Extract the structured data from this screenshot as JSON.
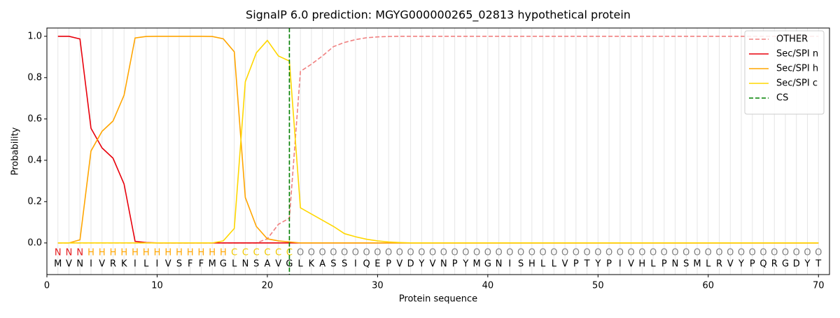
{
  "chart_data": {
    "type": "line",
    "title": "SignalP 6.0 prediction: MGYG000000265_02813 hypothetical protein",
    "x_label": "Protein sequence",
    "y_label": "Probability",
    "xlim": [
      0,
      71
    ],
    "ylim": [
      -0.153,
      1.04
    ],
    "xticks": [
      0,
      10,
      20,
      30,
      40,
      50,
      60,
      70
    ],
    "yticks": [
      {
        "value": 0,
        "label": "0.0"
      },
      0.2,
      0.4,
      0.6,
      0.8,
      {
        "value": 1,
        "label": "1.0"
      }
    ],
    "x": [
      1,
      2,
      3,
      4,
      5,
      6,
      7,
      8,
      9,
      10,
      11,
      12,
      13,
      14,
      15,
      16,
      17,
      18,
      19,
      20,
      21,
      22,
      23,
      24,
      25,
      26,
      27,
      28,
      29,
      30,
      31,
      32,
      33,
      34,
      35,
      36,
      37,
      38,
      39,
      40,
      41,
      42,
      43,
      44,
      45,
      46,
      47,
      48,
      49,
      50,
      51,
      52,
      53,
      54,
      55,
      56,
      57,
      58,
      59,
      60,
      61,
      62,
      63,
      64,
      65,
      66,
      67,
      68,
      69,
      70
    ],
    "residues": [
      "M",
      "V",
      "N",
      "I",
      "V",
      "R",
      "K",
      "I",
      "L",
      "I",
      "V",
      "S",
      "F",
      "F",
      "M",
      "G",
      "L",
      "N",
      "S",
      "A",
      "V",
      "G",
      "L",
      "K",
      "A",
      "S",
      "S",
      "I",
      "Q",
      "E",
      "P",
      "V",
      "D",
      "Y",
      "V",
      "N",
      "P",
      "Y",
      "M",
      "G",
      "N",
      "I",
      "S",
      "H",
      "L",
      "L",
      "V",
      "P",
      "T",
      "Y",
      "P",
      "I",
      "V",
      "H",
      "L",
      "P",
      "N",
      "S",
      "M",
      "L",
      "R",
      "V",
      "Y",
      "P",
      "Q",
      "R",
      "G",
      "D",
      "Y",
      "T"
    ],
    "labels": [
      "N",
      "N",
      "N",
      "H",
      "H",
      "H",
      "H",
      "H",
      "H",
      "H",
      "H",
      "H",
      "H",
      "H",
      "H",
      "H",
      "C",
      "C",
      "C",
      "C",
      "C",
      "C",
      "O",
      "O",
      "O",
      "O",
      "O",
      "O",
      "O",
      "O",
      "O",
      "O",
      "O",
      "O",
      "O",
      "O",
      "O",
      "O",
      "O",
      "O",
      "O",
      "O",
      "O",
      "O",
      "O",
      "O",
      "O",
      "O",
      "O",
      "O",
      "O",
      "O",
      "O",
      "O",
      "O",
      "O",
      "O",
      "O",
      "O",
      "O",
      "O",
      "O",
      "O",
      "O",
      "O",
      "O",
      "O",
      "O",
      "O",
      "O"
    ],
    "label_colors": {
      "N": "#e41a1c",
      "H": "orange",
      "C": "#f0c800",
      "O": "gray"
    },
    "series": [
      {
        "name": "OTHER",
        "color": "#f08080",
        "dashed": true,
        "values": [
          0,
          0,
          0,
          0,
          0,
          0,
          0,
          0,
          0,
          0,
          0,
          0,
          0,
          0,
          0,
          0,
          0,
          0,
          0,
          0.02,
          0.09,
          0.12,
          0.83,
          0.865,
          0.905,
          0.95,
          0.97,
          0.984,
          0.993,
          0.997,
          0.999,
          1,
          1,
          1,
          1,
          1,
          1,
          1,
          1,
          1,
          1,
          1,
          1,
          1,
          1,
          1,
          1,
          1,
          1,
          1,
          1,
          1,
          1,
          1,
          1,
          1,
          1,
          1,
          1,
          1,
          1,
          1,
          1,
          1,
          1,
          1,
          1,
          1,
          1,
          1
        ]
      },
      {
        "name": "Sec/SPI n",
        "color": "#e8000b",
        "dashed": false,
        "values": [
          1,
          1,
          0.987,
          0.555,
          0.46,
          0.41,
          0.285,
          0.008,
          0.002,
          0,
          0,
          0,
          0,
          0,
          0,
          0,
          0,
          0,
          0,
          0,
          0,
          0,
          0,
          0,
          0,
          0,
          0,
          0,
          0,
          0,
          0,
          0,
          0,
          0,
          0,
          0,
          0,
          0,
          0,
          0,
          0,
          0,
          0,
          0,
          0,
          0,
          0,
          0,
          0,
          0,
          0,
          0,
          0,
          0,
          0,
          0,
          0,
          0,
          0,
          0,
          0,
          0,
          0,
          0,
          0,
          0,
          0,
          0,
          0,
          0
        ]
      },
      {
        "name": "Sec/SPI h",
        "color": "orange",
        "dashed": false,
        "values": [
          0,
          0,
          0.015,
          0.445,
          0.54,
          0.59,
          0.715,
          0.992,
          0.999,
          1,
          1,
          1,
          1,
          1,
          0.999,
          0.988,
          0.925,
          0.22,
          0.08,
          0.02,
          0.01,
          0.005,
          0,
          0,
          0,
          0,
          0,
          0,
          0,
          0,
          0,
          0,
          0,
          0,
          0,
          0,
          0,
          0,
          0,
          0,
          0,
          0,
          0,
          0,
          0,
          0,
          0,
          0,
          0,
          0,
          0,
          0,
          0,
          0,
          0,
          0,
          0,
          0,
          0,
          0,
          0,
          0,
          0,
          0,
          0,
          0,
          0,
          0,
          0,
          0
        ]
      },
      {
        "name": "Sec/SPI c",
        "color": "#ffd700",
        "dashed": false,
        "values": [
          0,
          0,
          0,
          0,
          0,
          0,
          0,
          0,
          0,
          0,
          0,
          0,
          0,
          0,
          0,
          0.01,
          0.07,
          0.78,
          0.92,
          0.98,
          0.905,
          0.88,
          0.17,
          0.14,
          0.11,
          0.08,
          0.045,
          0.03,
          0.018,
          0.01,
          0.005,
          0.002,
          0,
          0,
          0,
          0,
          0,
          0,
          0,
          0,
          0,
          0,
          0,
          0,
          0,
          0,
          0,
          0,
          0,
          0,
          0,
          0,
          0,
          0,
          0,
          0,
          0,
          0,
          0,
          0,
          0,
          0,
          0,
          0,
          0,
          0,
          0,
          0,
          0,
          0
        ]
      }
    ],
    "cs": {
      "name": "CS",
      "x": 22,
      "color": "green"
    },
    "legend": "upper right"
  }
}
